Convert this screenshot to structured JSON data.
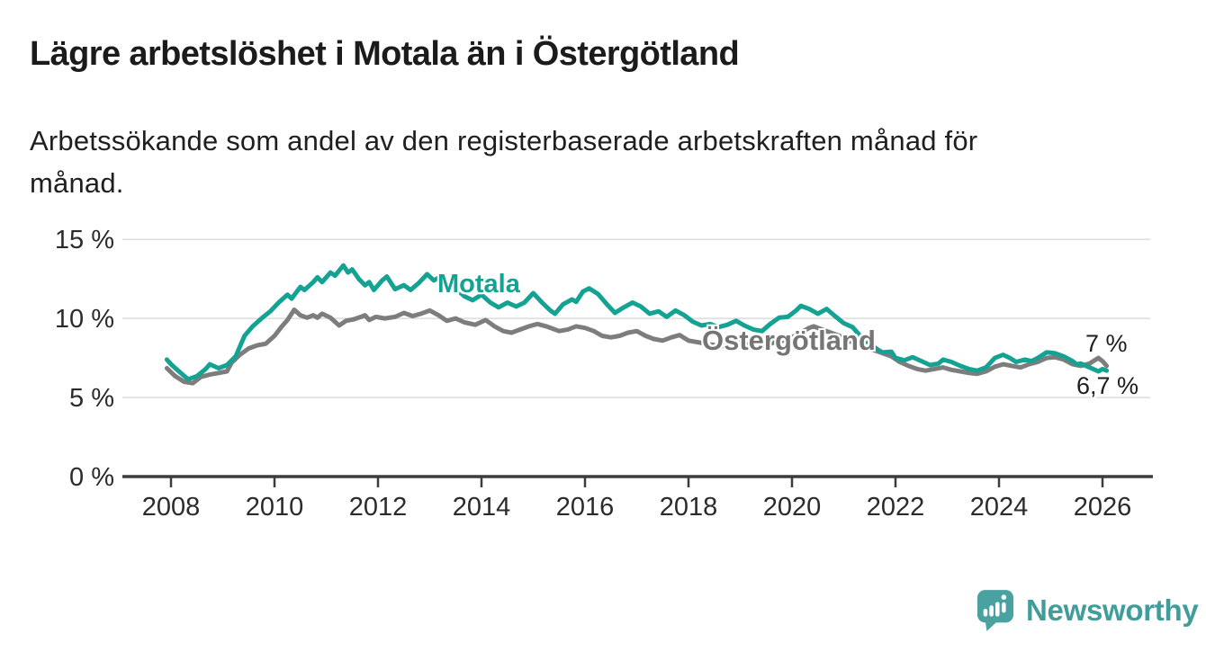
{
  "title": "Lägre arbetslöshet i Motala än i Östergötland",
  "subtitle": {
    "line1": "Arbetssökande som andel av den registerbaserade arbetskraften månad för",
    "line2": "månad."
  },
  "logo": {
    "text": "Newsworthy",
    "icon": "newsworthy-speech-bubble-bar-chart-icon",
    "icon_color": "#4aa2a0",
    "text_color": "#3f9d9a"
  },
  "colors": {
    "background": "#ffffff",
    "title_text": "#1b1b1b",
    "axis_text": "#2b2b2b",
    "axis_line": "#3c3c3c",
    "gridline": "#dcdcdc",
    "motala_teal": "#14a292",
    "ostergotland_gray": "#7d7d7d"
  },
  "chart_data": {
    "type": "line",
    "title": "Lägre arbetslöshet i Motala än i Östergötland",
    "xlabel": "",
    "ylabel": "",
    "grid": true,
    "legend_position": "inline-labels",
    "x_axis": {
      "unit": "year",
      "range": [
        2007.9,
        2026.95
      ],
      "ticks": [
        2008,
        2010,
        2012,
        2014,
        2016,
        2018,
        2020,
        2022,
        2024,
        2026
      ]
    },
    "y_axis": {
      "range": [
        0,
        15
      ],
      "gridlines": [
        5,
        10,
        15
      ],
      "ticks": [
        {
          "value": 0,
          "label": "0 %"
        },
        {
          "value": 5,
          "label": "5 %"
        },
        {
          "value": 10,
          "label": "10 %"
        },
        {
          "value": 15,
          "label": "15 %"
        }
      ]
    },
    "series": [
      {
        "name": "Östergötland",
        "color": "#7d7d7d",
        "label_color": "#757575",
        "end_label": "7 %",
        "end_value": 7.0,
        "points": [
          [
            2007.92,
            6.85
          ],
          [
            2008.08,
            6.35
          ],
          [
            2008.25,
            6.0
          ],
          [
            2008.42,
            5.9
          ],
          [
            2008.58,
            6.3
          ],
          [
            2008.75,
            6.45
          ],
          [
            2008.92,
            6.55
          ],
          [
            2009.08,
            6.65
          ],
          [
            2009.17,
            7.2
          ],
          [
            2009.33,
            7.7
          ],
          [
            2009.5,
            8.1
          ],
          [
            2009.67,
            8.3
          ],
          [
            2009.83,
            8.4
          ],
          [
            2010.0,
            8.9
          ],
          [
            2010.13,
            9.45
          ],
          [
            2010.25,
            9.9
          ],
          [
            2010.38,
            10.55
          ],
          [
            2010.5,
            10.2
          ],
          [
            2010.63,
            10.05
          ],
          [
            2010.75,
            10.2
          ],
          [
            2010.83,
            10.05
          ],
          [
            2010.92,
            10.3
          ],
          [
            2011.08,
            10.05
          ],
          [
            2011.25,
            9.55
          ],
          [
            2011.38,
            9.85
          ],
          [
            2011.54,
            9.95
          ],
          [
            2011.67,
            10.1
          ],
          [
            2011.75,
            10.2
          ],
          [
            2011.83,
            9.9
          ],
          [
            2011.96,
            10.1
          ],
          [
            2012.13,
            10.0
          ],
          [
            2012.33,
            10.1
          ],
          [
            2012.5,
            10.35
          ],
          [
            2012.67,
            10.15
          ],
          [
            2012.83,
            10.3
          ],
          [
            2013.0,
            10.5
          ],
          [
            2013.17,
            10.2
          ],
          [
            2013.33,
            9.85
          ],
          [
            2013.5,
            10.0
          ],
          [
            2013.67,
            9.75
          ],
          [
            2013.88,
            9.6
          ],
          [
            2014.08,
            9.9
          ],
          [
            2014.25,
            9.5
          ],
          [
            2014.42,
            9.2
          ],
          [
            2014.58,
            9.1
          ],
          [
            2014.75,
            9.3
          ],
          [
            2014.92,
            9.5
          ],
          [
            2015.08,
            9.65
          ],
          [
            2015.25,
            9.5
          ],
          [
            2015.5,
            9.2
          ],
          [
            2015.67,
            9.3
          ],
          [
            2015.83,
            9.5
          ],
          [
            2016.0,
            9.4
          ],
          [
            2016.17,
            9.2
          ],
          [
            2016.33,
            8.9
          ],
          [
            2016.5,
            8.8
          ],
          [
            2016.67,
            8.9
          ],
          [
            2016.83,
            9.1
          ],
          [
            2017.0,
            9.2
          ],
          [
            2017.17,
            8.9
          ],
          [
            2017.33,
            8.7
          ],
          [
            2017.5,
            8.6
          ],
          [
            2017.67,
            8.8
          ],
          [
            2017.83,
            8.95
          ],
          [
            2018.0,
            8.6
          ],
          [
            2018.17,
            8.5
          ],
          [
            2018.42,
            8.35
          ],
          [
            2018.67,
            8.25
          ],
          [
            2018.83,
            8.35
          ],
          [
            2019.0,
            8.5
          ],
          [
            2019.17,
            8.3
          ],
          [
            2019.33,
            8.2
          ],
          [
            2019.5,
            8.3
          ],
          [
            2019.67,
            8.5
          ],
          [
            2019.83,
            8.6
          ],
          [
            2020.0,
            8.8
          ],
          [
            2020.17,
            9.1
          ],
          [
            2020.33,
            9.4
          ],
          [
            2020.42,
            9.5
          ],
          [
            2020.58,
            9.3
          ],
          [
            2020.75,
            9.1
          ],
          [
            2020.92,
            8.9
          ],
          [
            2021.08,
            8.6
          ],
          [
            2021.25,
            8.4
          ],
          [
            2021.42,
            8.2
          ],
          [
            2021.58,
            8.0
          ],
          [
            2021.75,
            7.8
          ],
          [
            2021.92,
            7.6
          ],
          [
            2022.08,
            7.25
          ],
          [
            2022.25,
            7.0
          ],
          [
            2022.42,
            6.8
          ],
          [
            2022.58,
            6.7
          ],
          [
            2022.75,
            6.8
          ],
          [
            2022.92,
            6.9
          ],
          [
            2023.08,
            6.75
          ],
          [
            2023.25,
            6.65
          ],
          [
            2023.42,
            6.55
          ],
          [
            2023.58,
            6.5
          ],
          [
            2023.75,
            6.65
          ],
          [
            2023.92,
            6.95
          ],
          [
            2024.08,
            7.1
          ],
          [
            2024.25,
            7.0
          ],
          [
            2024.42,
            6.9
          ],
          [
            2024.58,
            7.1
          ],
          [
            2024.75,
            7.25
          ],
          [
            2024.92,
            7.5
          ],
          [
            2025.08,
            7.55
          ],
          [
            2025.25,
            7.4
          ],
          [
            2025.42,
            7.1
          ],
          [
            2025.58,
            7.0
          ],
          [
            2025.75,
            7.15
          ],
          [
            2025.92,
            7.5
          ],
          [
            2026.0,
            7.3
          ],
          [
            2026.08,
            7.0
          ]
        ]
      },
      {
        "name": "Motala",
        "color": "#14a292",
        "label_color": "#14a292",
        "end_label": "6,7 %",
        "end_value": 6.7,
        "points": [
          [
            2007.92,
            7.4
          ],
          [
            2008.0,
            7.1
          ],
          [
            2008.17,
            6.6
          ],
          [
            2008.33,
            6.15
          ],
          [
            2008.5,
            6.35
          ],
          [
            2008.67,
            6.8
          ],
          [
            2008.75,
            7.1
          ],
          [
            2008.92,
            6.85
          ],
          [
            2009.08,
            7.05
          ],
          [
            2009.25,
            7.6
          ],
          [
            2009.42,
            8.9
          ],
          [
            2009.58,
            9.5
          ],
          [
            2009.75,
            10.0
          ],
          [
            2009.92,
            10.45
          ],
          [
            2010.08,
            11.0
          ],
          [
            2010.25,
            11.5
          ],
          [
            2010.33,
            11.25
          ],
          [
            2010.5,
            12.0
          ],
          [
            2010.58,
            11.8
          ],
          [
            2010.75,
            12.3
          ],
          [
            2010.83,
            12.6
          ],
          [
            2010.92,
            12.3
          ],
          [
            2011.08,
            12.9
          ],
          [
            2011.17,
            12.7
          ],
          [
            2011.33,
            13.35
          ],
          [
            2011.42,
            12.9
          ],
          [
            2011.5,
            13.1
          ],
          [
            2011.63,
            12.5
          ],
          [
            2011.75,
            12.1
          ],
          [
            2011.83,
            12.3
          ],
          [
            2011.92,
            11.8
          ],
          [
            2012.08,
            12.4
          ],
          [
            2012.17,
            12.65
          ],
          [
            2012.33,
            11.85
          ],
          [
            2012.5,
            12.1
          ],
          [
            2012.63,
            11.8
          ],
          [
            2012.79,
            12.25
          ],
          [
            2012.95,
            12.8
          ],
          [
            2013.08,
            12.4
          ],
          [
            2013.21,
            12.65
          ],
          [
            2013.33,
            12.3
          ],
          [
            2013.5,
            11.9
          ],
          [
            2013.67,
            11.4
          ],
          [
            2013.83,
            11.15
          ],
          [
            2014.0,
            11.5
          ],
          [
            2014.17,
            11.0
          ],
          [
            2014.33,
            10.7
          ],
          [
            2014.5,
            11.0
          ],
          [
            2014.67,
            10.75
          ],
          [
            2014.83,
            11.0
          ],
          [
            2015.0,
            11.6
          ],
          [
            2015.17,
            11.0
          ],
          [
            2015.33,
            10.5
          ],
          [
            2015.42,
            10.3
          ],
          [
            2015.58,
            10.9
          ],
          [
            2015.75,
            11.2
          ],
          [
            2015.83,
            11.05
          ],
          [
            2015.96,
            11.7
          ],
          [
            2016.08,
            11.9
          ],
          [
            2016.25,
            11.55
          ],
          [
            2016.42,
            10.9
          ],
          [
            2016.58,
            10.35
          ],
          [
            2016.75,
            10.7
          ],
          [
            2016.92,
            11.0
          ],
          [
            2017.08,
            10.75
          ],
          [
            2017.25,
            10.3
          ],
          [
            2017.42,
            10.45
          ],
          [
            2017.58,
            10.1
          ],
          [
            2017.75,
            10.5
          ],
          [
            2017.92,
            10.2
          ],
          [
            2018.08,
            9.8
          ],
          [
            2018.25,
            9.55
          ],
          [
            2018.42,
            9.65
          ],
          [
            2018.58,
            9.45
          ],
          [
            2018.75,
            9.6
          ],
          [
            2018.92,
            9.85
          ],
          [
            2019.08,
            9.55
          ],
          [
            2019.25,
            9.3
          ],
          [
            2019.42,
            9.2
          ],
          [
            2019.58,
            9.65
          ],
          [
            2019.75,
            10.05
          ],
          [
            2019.92,
            10.1
          ],
          [
            2020.08,
            10.5
          ],
          [
            2020.17,
            10.8
          ],
          [
            2020.33,
            10.6
          ],
          [
            2020.5,
            10.3
          ],
          [
            2020.67,
            10.6
          ],
          [
            2020.83,
            10.15
          ],
          [
            2021.0,
            9.7
          ],
          [
            2021.17,
            9.45
          ],
          [
            2021.33,
            8.85
          ],
          [
            2021.5,
            8.4
          ],
          [
            2021.67,
            8.0
          ],
          [
            2021.75,
            7.85
          ],
          [
            2021.92,
            7.9
          ],
          [
            2022.0,
            7.5
          ],
          [
            2022.17,
            7.35
          ],
          [
            2022.33,
            7.55
          ],
          [
            2022.5,
            7.3
          ],
          [
            2022.67,
            7.05
          ],
          [
            2022.83,
            7.15
          ],
          [
            2022.92,
            7.4
          ],
          [
            2023.08,
            7.25
          ],
          [
            2023.25,
            7.0
          ],
          [
            2023.42,
            6.8
          ],
          [
            2023.58,
            6.7
          ],
          [
            2023.75,
            6.9
          ],
          [
            2023.92,
            7.5
          ],
          [
            2024.08,
            7.7
          ],
          [
            2024.21,
            7.5
          ],
          [
            2024.33,
            7.25
          ],
          [
            2024.5,
            7.4
          ],
          [
            2024.63,
            7.3
          ],
          [
            2024.75,
            7.5
          ],
          [
            2024.92,
            7.85
          ],
          [
            2025.08,
            7.8
          ],
          [
            2025.25,
            7.6
          ],
          [
            2025.42,
            7.3
          ],
          [
            2025.5,
            7.1
          ],
          [
            2025.58,
            7.15
          ],
          [
            2025.75,
            6.9
          ],
          [
            2025.92,
            6.65
          ],
          [
            2026.0,
            6.8
          ],
          [
            2026.08,
            6.7
          ]
        ]
      }
    ]
  }
}
